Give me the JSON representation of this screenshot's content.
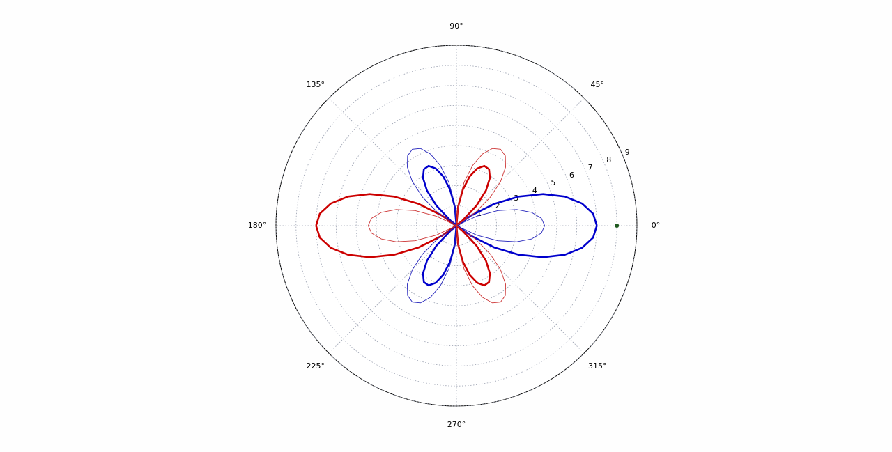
{
  "chart_data": {
    "type": "polar",
    "theta": [
      0,
      5,
      10,
      15,
      20,
      25,
      30,
      35,
      40,
      45,
      50,
      55,
      60,
      65,
      70,
      75,
      80,
      85,
      90,
      95,
      100,
      105,
      110,
      115,
      120,
      125,
      130,
      135,
      140,
      145,
      150,
      155,
      160,
      165,
      170,
      175,
      180
    ],
    "series": [
      {
        "color": "#0000cc",
        "linewidth": 2.6,
        "values": [
          7.0,
          6.84,
          6.36,
          5.6,
          4.6,
          3.43,
          2.17,
          0.88,
          -0.34,
          -1.41,
          -2.29,
          -2.91,
          -3.25,
          -3.29,
          -3.04,
          -2.54,
          -1.82,
          -0.95,
          0,
          0.95,
          1.82,
          2.54,
          3.04,
          3.29,
          3.25,
          2.91,
          2.29,
          1.41,
          0.34,
          -0.88,
          -2.17,
          -3.43,
          -4.6,
          -5.6,
          -6.36,
          -6.84,
          -7.0
        ]
      },
      {
        "color": "#cc0000",
        "linewidth": 2.6,
        "values": [
          -7.0,
          -6.84,
          -6.36,
          -5.6,
          -4.6,
          -3.43,
          -2.17,
          -0.88,
          0.34,
          1.41,
          2.29,
          2.91,
          3.25,
          3.29,
          3.04,
          2.54,
          1.82,
          0.95,
          0,
          -0.95,
          -1.82,
          -2.54,
          -3.04,
          -3.29,
          -3.25,
          -2.91,
          -2.29,
          -1.41,
          -0.34,
          0.88,
          2.17,
          3.43,
          4.6,
          5.6,
          6.36,
          6.84,
          7.0
        ]
      },
      {
        "color": "#2222bb",
        "linewidth": 0.9,
        "values": [
          4.4,
          4.25,
          3.81,
          3.11,
          2.2,
          1.14,
          0,
          -1.14,
          -2.2,
          -3.11,
          -3.81,
          -4.25,
          -4.4,
          -4.25,
          -3.81,
          -3.11,
          -2.2,
          -1.14,
          0,
          1.14,
          2.2,
          3.11,
          3.81,
          4.25,
          4.4,
          4.25,
          3.81,
          3.11,
          2.2,
          1.14,
          0,
          -1.14,
          -2.2,
          -3.11,
          -3.81,
          -4.25,
          -4.4
        ]
      },
      {
        "color": "#cc3333",
        "linewidth": 0.9,
        "values": [
          -4.4,
          -4.25,
          -3.81,
          -3.11,
          -2.2,
          -1.14,
          0,
          1.14,
          2.2,
          3.11,
          3.81,
          4.25,
          4.4,
          4.25,
          3.81,
          3.11,
          2.2,
          1.14,
          0,
          -1.14,
          -2.2,
          -3.11,
          -3.81,
          -4.25,
          -4.4,
          -4.25,
          -3.81,
          -3.11,
          -2.2,
          -1.14,
          0,
          1.14,
          2.2,
          3.11,
          3.81,
          4.25,
          4.4
        ]
      }
    ],
    "points": {
      "color": "#1f5a1f",
      "theta": [
        0
      ],
      "values": [
        8
      ]
    },
    "rlim": [
      0,
      9
    ],
    "rticks": [
      1,
      2,
      3,
      4,
      5,
      6,
      7,
      8,
      9
    ],
    "thetaticks": [
      {
        "value": 0,
        "label": "0°"
      },
      {
        "value": 45,
        "label": "45°"
      },
      {
        "value": 90,
        "label": "90°"
      },
      {
        "value": 135,
        "label": "135°"
      },
      {
        "value": 180,
        "label": "180°"
      },
      {
        "value": 225,
        "label": "225°"
      },
      {
        "value": 270,
        "label": "270°"
      },
      {
        "value": 315,
        "label": "315°"
      }
    ],
    "grid": true
  }
}
